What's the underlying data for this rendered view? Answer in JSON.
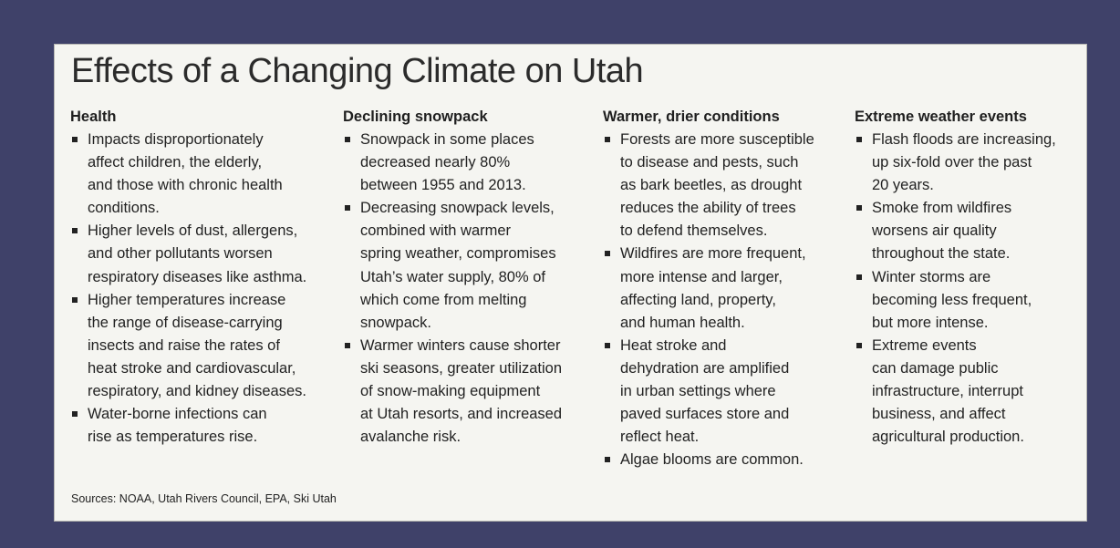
{
  "title": "Effects of a Changing Climate on Utah",
  "columns": [
    {
      "heading": "Health",
      "items": [
        [
          "Impacts disproportionately",
          "affect children, the elderly,",
          "and those with chronic health",
          "conditions."
        ],
        [
          "Higher levels of dust, allergens,",
          "and other pollutants worsen",
          "respiratory diseases like asthma."
        ],
        [
          "Higher temperatures increase",
          "the range of disease-carrying",
          "insects and raise the rates of",
          "heat stroke and cardiovascular,",
          "respiratory, and kidney diseases."
        ],
        [
          "Water-borne infections can",
          "rise as temperatures rise."
        ]
      ]
    },
    {
      "heading": "Declining snowpack",
      "items": [
        [
          "Snowpack in some places",
          "decreased nearly 80%",
          "between 1955 and 2013."
        ],
        [
          "Decreasing snowpack levels,",
          "combined with warmer",
          "spring weather, compromises",
          "Utah’s water supply, 80% of",
          "which come from melting",
          "snowpack."
        ],
        [
          "Warmer winters cause shorter",
          "ski seasons, greater utilization",
          "of snow-making equipment",
          "at Utah resorts, and increased",
          "avalanche risk."
        ]
      ]
    },
    {
      "heading": "Warmer, drier conditions",
      "items": [
        [
          "Forests are more susceptible",
          "to disease and pests, such",
          "as bark beetles, as drought",
          "reduces the ability of trees",
          "to defend themselves."
        ],
        [
          "Wildfires are more frequent,",
          "more intense and larger,",
          "affecting land, property,",
          "and human health."
        ],
        [
          "Heat stroke and",
          "dehydration are amplified",
          "in urban settings where",
          "paved surfaces store and",
          "reflect heat."
        ],
        [
          "Algae blooms are common."
        ]
      ]
    },
    {
      "heading": "Extreme weather events",
      "items": [
        [
          "Flash floods are increasing,",
          "up six-fold over the past",
          "20 years."
        ],
        [
          "Smoke from wildfires",
          "worsens air quality",
          "throughout the state."
        ],
        [
          "Winter storms are",
          "becoming less frequent,",
          "but more intense."
        ],
        [
          "Extreme events",
          "can damage public",
          "infrastructure, interrupt",
          "business, and affect",
          "agricultural production."
        ]
      ]
    }
  ],
  "sources": "Sources: NOAA, Utah Rivers Council, EPA, Ski Utah"
}
